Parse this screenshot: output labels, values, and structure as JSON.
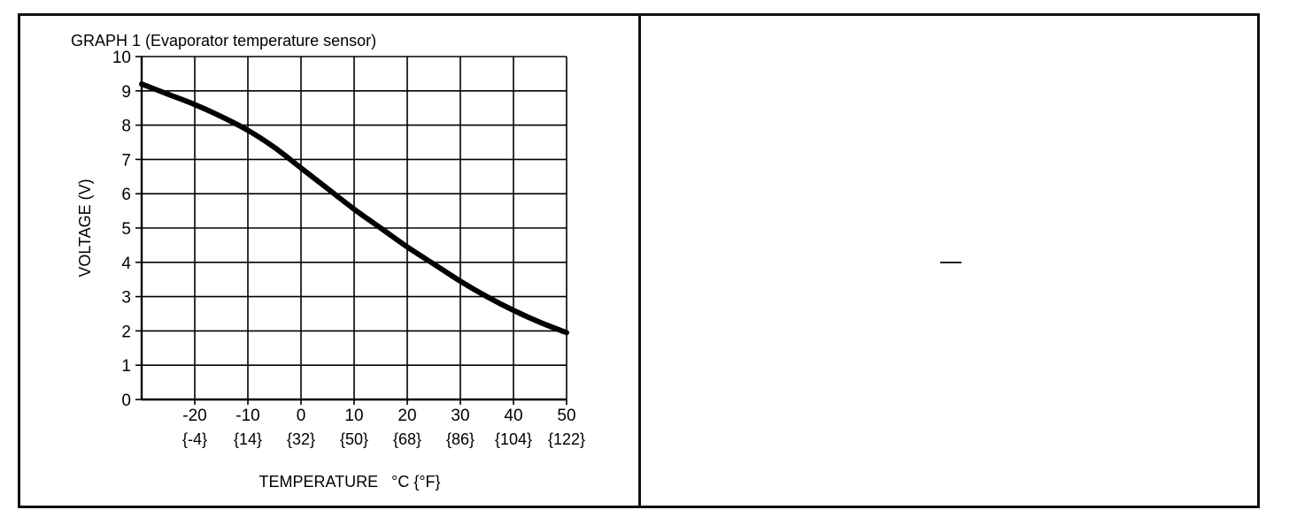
{
  "chart_data": {
    "type": "line",
    "title": "GRAPH 1 (Evaporator temperature sensor)",
    "ylabel": "VOLTAGE (V)",
    "xlabel": "TEMPERATURE   °C {°F}",
    "xlim": [
      -30,
      50
    ],
    "ylim": [
      0,
      10
    ],
    "grid": true,
    "legend": "none",
    "colors": {
      "line": "#000000",
      "grid": "#000000"
    },
    "y_ticks": [
      {
        "value": 0,
        "label": "0"
      },
      {
        "value": 1,
        "label": "1"
      },
      {
        "value": 2,
        "label": "2"
      },
      {
        "value": 3,
        "label": "3"
      },
      {
        "value": 4,
        "label": "4"
      },
      {
        "value": 5,
        "label": "5"
      },
      {
        "value": 6,
        "label": "6"
      },
      {
        "value": 7,
        "label": "7"
      },
      {
        "value": 8,
        "label": "8"
      },
      {
        "value": 9,
        "label": "9"
      },
      {
        "value": 10,
        "label": "10"
      }
    ],
    "x_ticks": [
      {
        "value": -20,
        "label": "-20",
        "sublabel": "{-4}"
      },
      {
        "value": -10,
        "label": "-10",
        "sublabel": "{14}"
      },
      {
        "value": 0,
        "label": "0",
        "sublabel": "{32}"
      },
      {
        "value": 10,
        "label": "10",
        "sublabel": "{50}"
      },
      {
        "value": 20,
        "label": "20",
        "sublabel": "{68}"
      },
      {
        "value": 30,
        "label": "30",
        "sublabel": "{86}"
      },
      {
        "value": 40,
        "label": "40",
        "sublabel": "{104}"
      },
      {
        "value": 50,
        "label": "50",
        "sublabel": "{122}"
      }
    ],
    "x_grid": [
      -30,
      -20,
      -10,
      0,
      10,
      20,
      30,
      40,
      50
    ],
    "series": [
      {
        "x": [
          -30,
          -25,
          -20,
          -15,
          -10,
          -5,
          0,
          5,
          10,
          15,
          20,
          25,
          30,
          35,
          40,
          45,
          50
        ],
        "y": [
          9.2,
          8.9,
          8.6,
          8.25,
          7.85,
          7.35,
          6.75,
          6.15,
          5.55,
          5.0,
          4.45,
          3.95,
          3.45,
          3.0,
          2.6,
          2.25,
          1.95
        ]
      }
    ]
  }
}
